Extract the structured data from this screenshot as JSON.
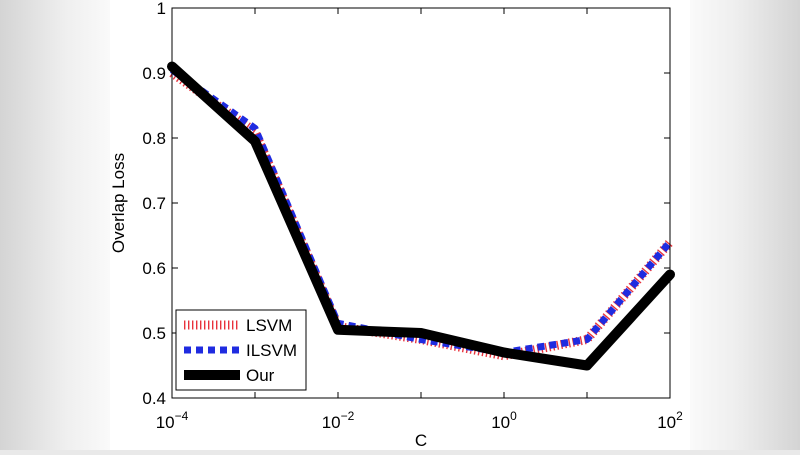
{
  "chart_data": {
    "type": "line",
    "xlabel": "C",
    "ylabel": "Overlap Loss",
    "xscale": "log",
    "xlim": [
      0.0001,
      100
    ],
    "ylim": [
      0.4,
      1.0
    ],
    "x": [
      0.0001,
      0.001,
      0.01,
      0.1,
      1,
      10,
      100
    ],
    "x_ticks": [
      {
        "base": "10",
        "exp": "−4"
      },
      {
        "base": "10",
        "exp": "−2"
      },
      {
        "base": "10",
        "exp": "0"
      },
      {
        "base": "10",
        "exp": "2"
      }
    ],
    "y_ticks": [
      "0.4",
      "0.5",
      "0.6",
      "0.7",
      "0.8",
      "0.9",
      "1"
    ],
    "series": [
      {
        "name": "LSVM",
        "values": [
          0.9,
          0.81,
          0.51,
          0.49,
          0.465,
          0.49,
          0.64
        ],
        "color": "#e8323c",
        "style": "dotted"
      },
      {
        "name": "ILSVM",
        "values": [
          0.905,
          0.815,
          0.515,
          0.49,
          0.47,
          0.49,
          0.64
        ],
        "color": "#1f2be0",
        "style": "dashed"
      },
      {
        "name": "Our",
        "values": [
          0.91,
          0.795,
          0.505,
          0.5,
          0.47,
          0.45,
          0.59
        ],
        "color": "#000000",
        "style": "solid"
      }
    ],
    "legend_position": "bottom-left",
    "grid": false
  }
}
